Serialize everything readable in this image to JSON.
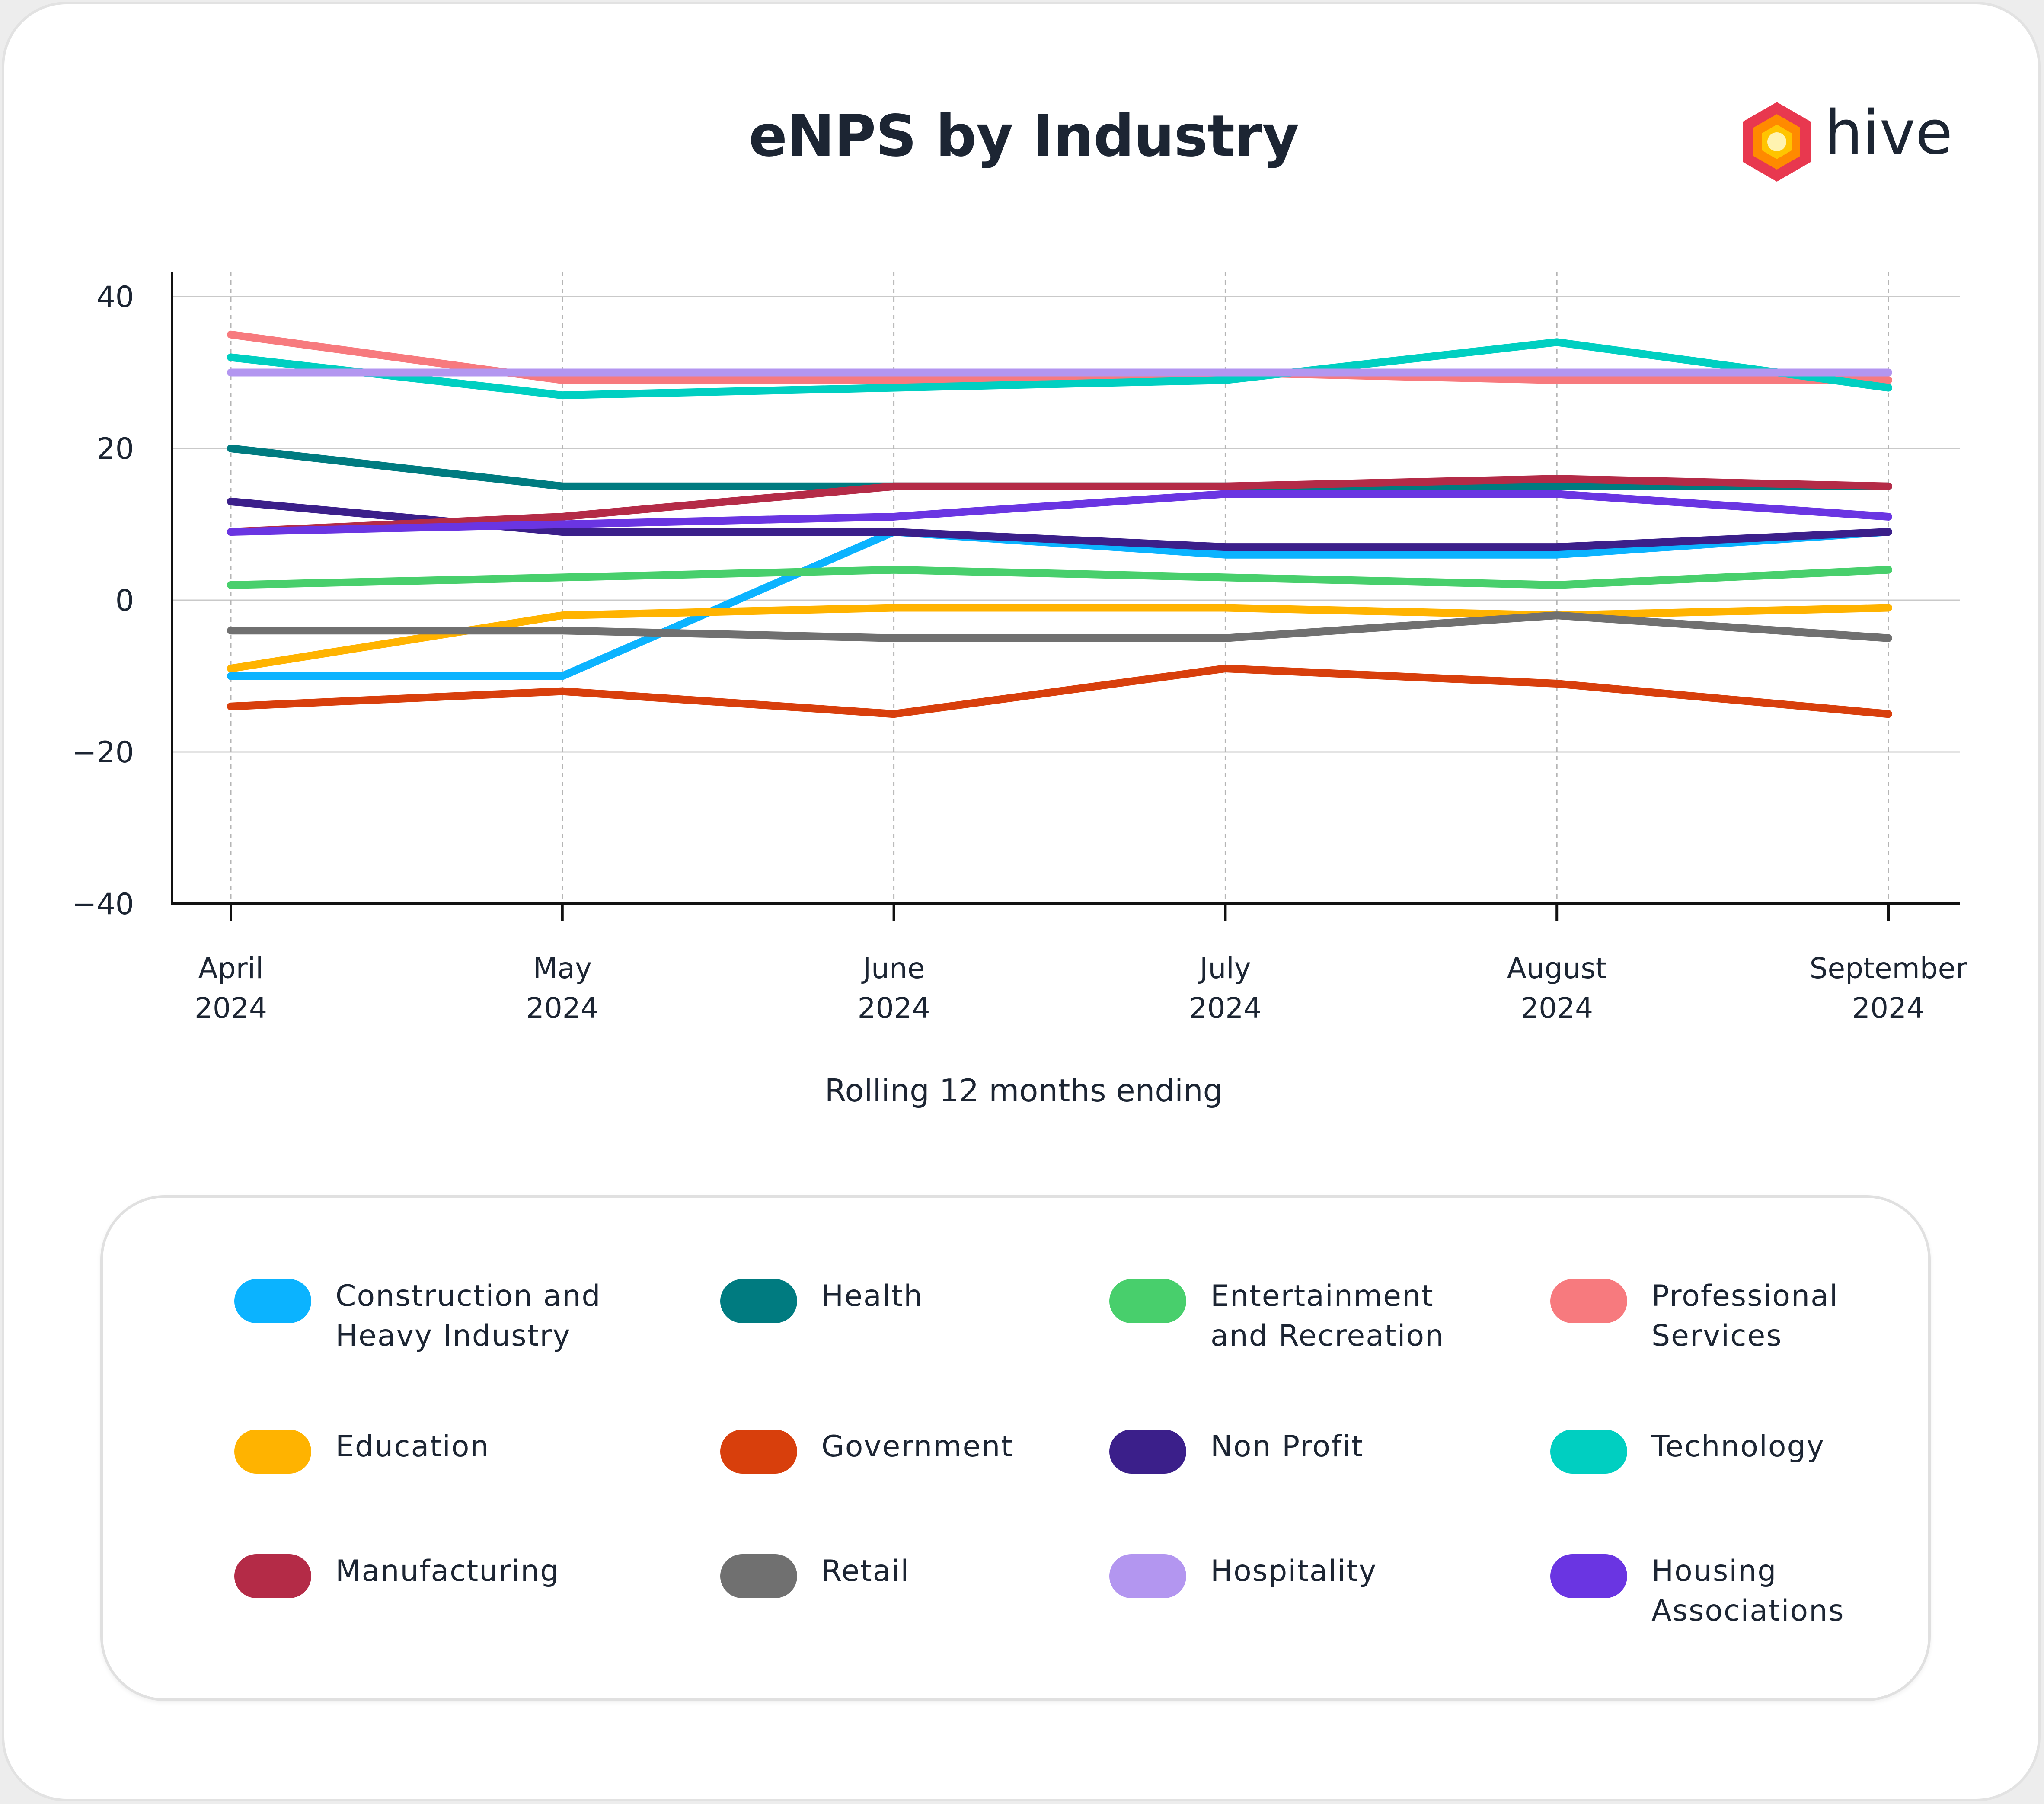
{
  "brand": {
    "name": "hive"
  },
  "chart_data": {
    "type": "line",
    "title": "eNPS by Industry",
    "xlabel": "Rolling 12 months ending",
    "ylabel": "",
    "categories": [
      [
        "April",
        "2024"
      ],
      [
        "May",
        "2024"
      ],
      [
        "June",
        "2024"
      ],
      [
        "July",
        "2024"
      ],
      [
        "August",
        "2024"
      ],
      [
        "September",
        "2024"
      ]
    ],
    "ylim": [
      -40,
      40
    ],
    "yticks": [
      40,
      20,
      0,
      -20,
      -40
    ],
    "grid": true,
    "legend_position": "bottom",
    "series": [
      {
        "name": "Construction and Heavy Industry",
        "color": "#0bb3ff",
        "values": [
          -10,
          -10,
          9,
          6,
          6,
          9
        ]
      },
      {
        "name": "Health",
        "color": "#007b80",
        "values": [
          20,
          15,
          15,
          15,
          15,
          15
        ]
      },
      {
        "name": "Entertainment and Recreation",
        "color": "#48cf6c",
        "values": [
          2,
          3,
          4,
          3,
          2,
          4
        ]
      },
      {
        "name": "Professional Services",
        "color": "#f77a7e",
        "values": [
          35,
          29,
          29,
          30,
          29,
          29
        ]
      },
      {
        "name": "Education",
        "color": "#ffb300",
        "values": [
          -9,
          -2,
          -1,
          -1,
          -2,
          -1
        ]
      },
      {
        "name": "Government",
        "color": "#d83f0c",
        "values": [
          -14,
          -12,
          -15,
          -9,
          -11,
          -15
        ]
      },
      {
        "name": "Non Profit",
        "color": "#3b1f8a",
        "values": [
          13,
          9,
          9,
          7,
          7,
          9
        ]
      },
      {
        "name": "Technology",
        "color": "#00cfc1",
        "values": [
          32,
          27,
          28,
          29,
          34,
          28
        ]
      },
      {
        "name": "Manufacturing",
        "color": "#b42b47",
        "values": [
          9,
          11,
          15,
          15,
          16,
          15
        ]
      },
      {
        "name": "Retail",
        "color": "#707070",
        "values": [
          -4,
          -4,
          -5,
          -5,
          -2,
          -5
        ]
      },
      {
        "name": "Hospitality",
        "color": "#b396f0",
        "values": [
          30,
          30,
          30,
          30,
          30,
          30
        ]
      },
      {
        "name": "Housing Associations",
        "color": "#6a35e2",
        "values": [
          9,
          10,
          11,
          14,
          14,
          11
        ]
      }
    ]
  },
  "legend": [
    {
      "lines": [
        "Construction and",
        "Heavy Industry"
      ],
      "color": "#0bb3ff"
    },
    {
      "lines": [
        "Health"
      ],
      "color": "#007b80"
    },
    {
      "lines": [
        "Entertainment",
        "and Recreation"
      ],
      "color": "#48cf6c"
    },
    {
      "lines": [
        "Professional",
        "Services"
      ],
      "color": "#f77a7e"
    },
    {
      "lines": [
        "Education"
      ],
      "color": "#ffb300"
    },
    {
      "lines": [
        "Government"
      ],
      "color": "#d83f0c"
    },
    {
      "lines": [
        "Non Profit"
      ],
      "color": "#3b1f8a"
    },
    {
      "lines": [
        "Technology"
      ],
      "color": "#00cfc1"
    },
    {
      "lines": [
        "Manufacturing"
      ],
      "color": "#b42b47"
    },
    {
      "lines": [
        "Retail"
      ],
      "color": "#707070"
    },
    {
      "lines": [
        "Hospitality"
      ],
      "color": "#b396f0"
    },
    {
      "lines": [
        "Housing",
        "Associations"
      ],
      "color": "#6a35e2"
    }
  ]
}
